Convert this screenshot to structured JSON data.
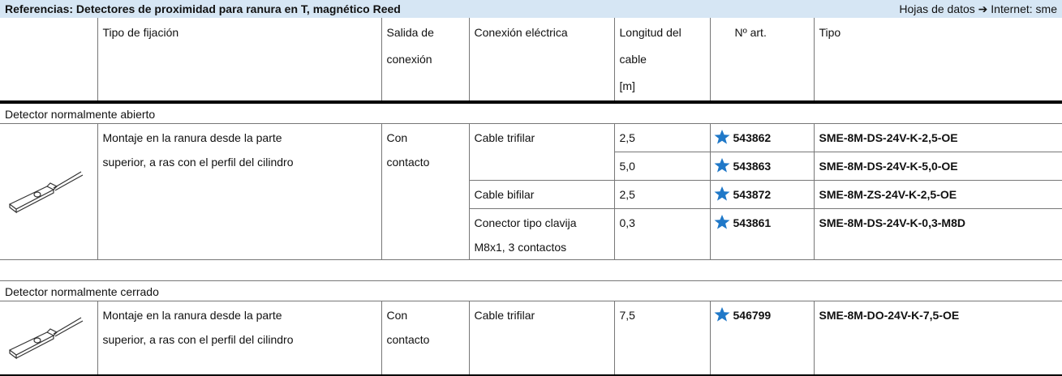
{
  "header": {
    "title": "Referencias: Detectores de proximidad para ranura en T, magnético Reed",
    "links": "Hojas de datos ➔ Internet: sme"
  },
  "table": {
    "columns": [
      [
        "Tipo de fijación"
      ],
      [
        "Salida de",
        "conexión"
      ],
      [
        "Conexión eléctrica"
      ],
      [
        "Longitud del",
        "cable",
        "[m]"
      ],
      [
        "Nº art."
      ],
      [
        "Tipo"
      ]
    ],
    "sections": [
      {
        "title": "Detector normalmente abierto",
        "mounting": [
          "Montaje en la ranura desde la parte",
          "superior, a ras con el perfil del cilindro"
        ],
        "output": [
          "Con",
          "contacto"
        ],
        "connections": [
          {
            "label": [
              "Cable trifilar"
            ],
            "variants": [
              {
                "length": "2,5",
                "article": "543862",
                "type": "SME-8M-DS-24V-K-2,5-OE"
              },
              {
                "length": "5,0",
                "article": "543863",
                "type": "SME-8M-DS-24V-K-5,0-OE"
              }
            ]
          },
          {
            "label": [
              "Cable bifilar"
            ],
            "variants": [
              {
                "length": "2,5",
                "article": "543872",
                "type": "SME-8M-ZS-24V-K-2,5-OE"
              }
            ]
          },
          {
            "label": [
              "Conector tipo clavija",
              "M8x1, 3 contactos"
            ],
            "variants": [
              {
                "length": "0,3",
                "article": "543861",
                "type": "SME-8M-DS-24V-K-0,3-M8D"
              }
            ]
          }
        ]
      },
      {
        "title": "Detector normalmente cerrado",
        "mounting": [
          "Montaje en la ranura desde la parte",
          "superior, a ras con el perfil del cilindro"
        ],
        "output": [
          "Con",
          "contacto"
        ],
        "connections": [
          {
            "label": [
              "Cable trifilar"
            ],
            "variants": [
              {
                "length": "7,5",
                "article": "546799",
                "type": "SME-8M-DO-24V-K-7,5-OE"
              }
            ]
          }
        ]
      }
    ]
  }
}
